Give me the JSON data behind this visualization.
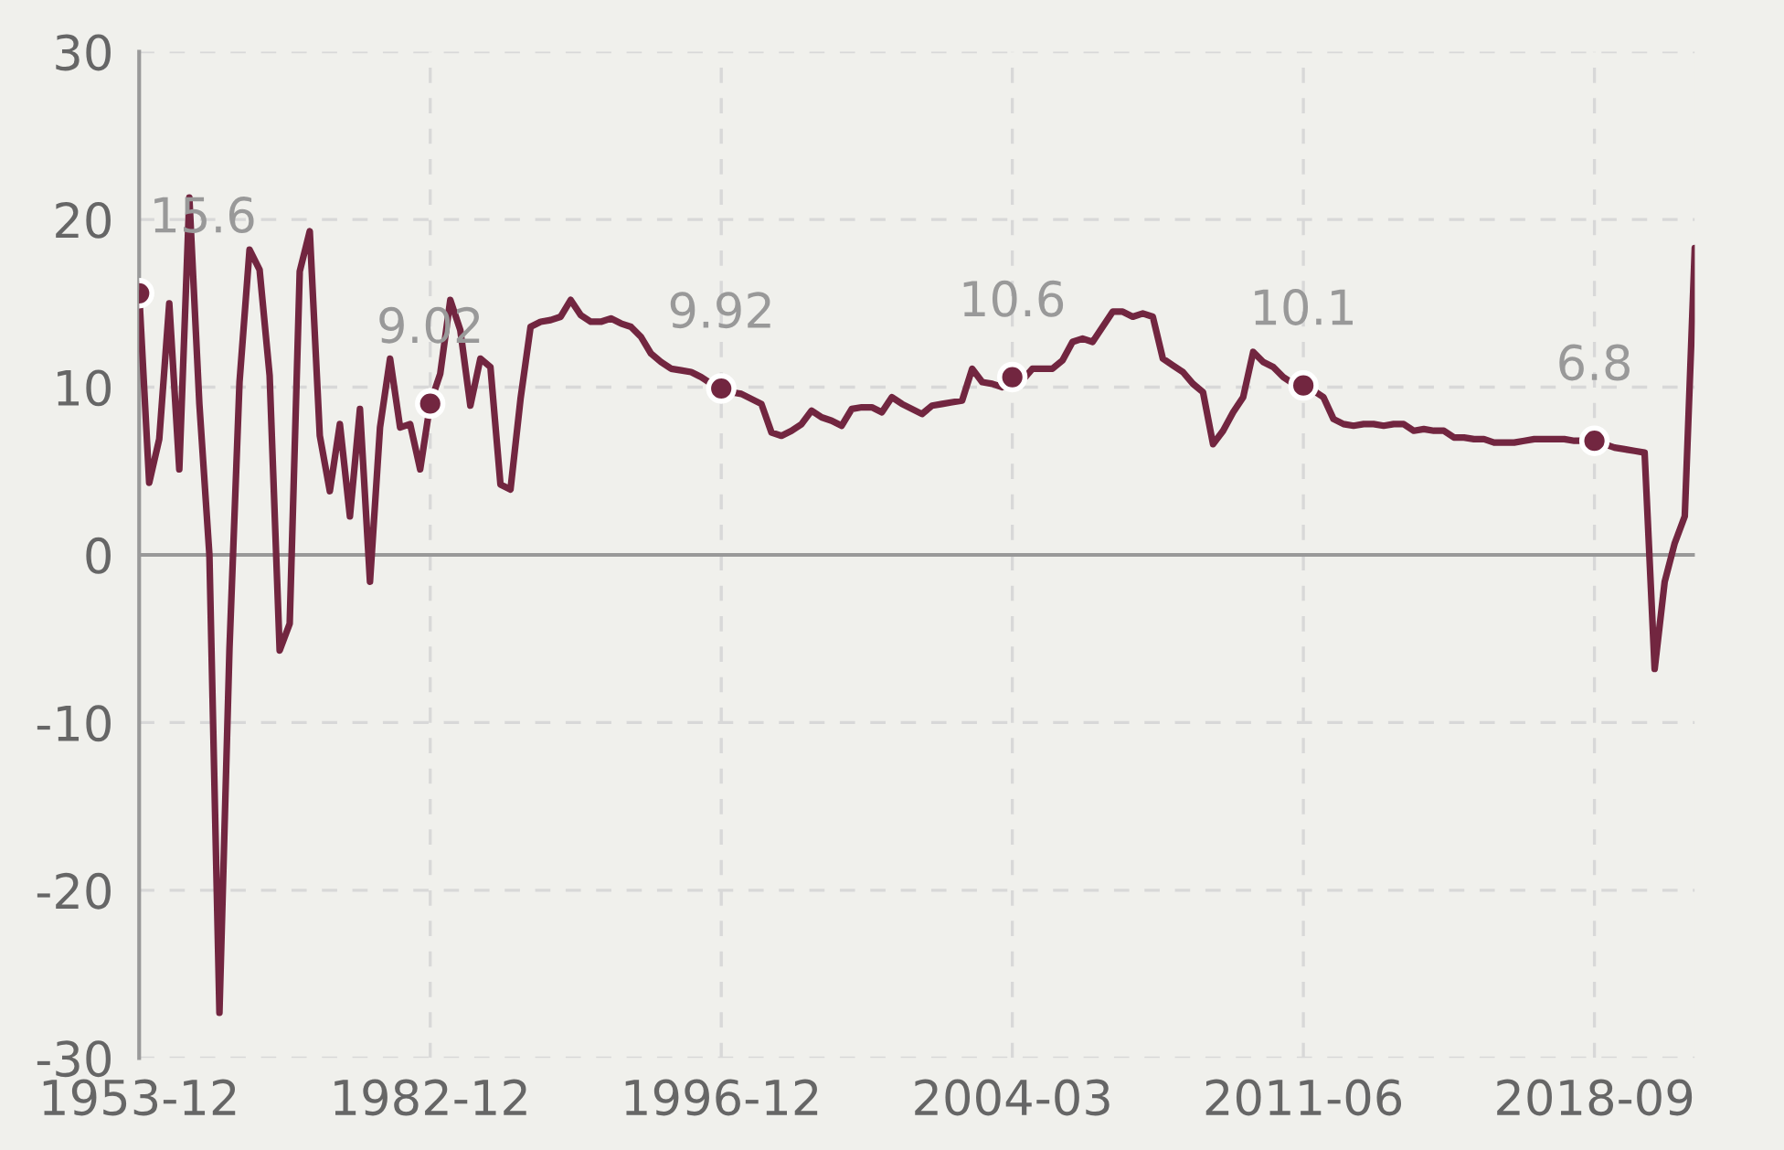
{
  "chart_data": {
    "type": "line",
    "categories": [
      "1953-12",
      null,
      null,
      null,
      null,
      null,
      null,
      null,
      null,
      null,
      null,
      null,
      null,
      null,
      null,
      null,
      null,
      null,
      null,
      null,
      null,
      null,
      null,
      null,
      null,
      null,
      null,
      null,
      null,
      "1982-12",
      null,
      null,
      null,
      null,
      null,
      null,
      null,
      null,
      null,
      null,
      null,
      null,
      null,
      null,
      null,
      null,
      null,
      null,
      null,
      null,
      null,
      null,
      null,
      null,
      null,
      null,
      null,
      null,
      "1996-12",
      null,
      null,
      null,
      null,
      null,
      null,
      null,
      null,
      null,
      null,
      null,
      null,
      null,
      null,
      null,
      null,
      null,
      null,
      null,
      null,
      null,
      null,
      null,
      null,
      null,
      null,
      null,
      null,
      "2004-03",
      null,
      null,
      null,
      null,
      null,
      null,
      null,
      null,
      null,
      null,
      null,
      null,
      null,
      null,
      null,
      null,
      null,
      null,
      null,
      null,
      null,
      null,
      null,
      null,
      null,
      null,
      null,
      null,
      "2011-06",
      null,
      null,
      null,
      null,
      null,
      null,
      null,
      null,
      null,
      null,
      null,
      null,
      null,
      null,
      null,
      null,
      null,
      null,
      null,
      null,
      null,
      null,
      null,
      null,
      null,
      null,
      null,
      null,
      "2018-09",
      null,
      null,
      null,
      null,
      null,
      null,
      null,
      null,
      null,
      null
    ],
    "series": [
      {
        "color": "#722640",
        "values": [
          15.6,
          4.3,
          6.9,
          15.0,
          5.1,
          21.3,
          9.0,
          0.0,
          -27.3,
          -5.6,
          10.3,
          18.2,
          17.0,
          10.7,
          -5.7,
          -4.1,
          16.9,
          19.3,
          7.1,
          3.8,
          7.8,
          2.3,
          8.7,
          -1.6,
          7.6,
          11.7,
          7.6,
          7.8,
          5.1,
          9.02,
          10.8,
          15.2,
          13.4,
          8.9,
          11.7,
          11.2,
          4.2,
          3.9,
          9.3,
          13.6,
          13.9,
          14.0,
          14.2,
          15.2,
          14.3,
          13.9,
          13.9,
          14.1,
          13.8,
          13.6,
          13.0,
          12.0,
          11.5,
          11.1,
          11.0,
          10.9,
          10.6,
          10.2,
          9.92,
          9.7,
          9.6,
          9.3,
          9.0,
          7.3,
          7.1,
          7.4,
          7.8,
          8.6,
          8.2,
          8.0,
          7.7,
          8.7,
          8.8,
          8.8,
          8.5,
          9.4,
          9.0,
          8.7,
          8.4,
          8.9,
          9.0,
          9.1,
          9.2,
          11.1,
          10.3,
          10.2,
          10.0,
          10.6,
          10.4,
          11.1,
          11.1,
          11.1,
          11.6,
          12.7,
          12.9,
          12.7,
          13.6,
          14.5,
          14.5,
          14.2,
          14.4,
          14.2,
          11.7,
          11.3,
          10.9,
          10.2,
          9.7,
          6.6,
          7.4,
          8.5,
          9.4,
          12.1,
          11.5,
          11.2,
          10.6,
          10.2,
          10.1,
          9.8,
          9.4,
          8.1,
          7.8,
          7.7,
          7.8,
          7.8,
          7.7,
          7.8,
          7.8,
          7.4,
          7.5,
          7.4,
          7.4,
          7.0,
          7.0,
          6.9,
          6.9,
          6.7,
          6.7,
          6.7,
          6.8,
          6.9,
          6.9,
          6.9,
          6.9,
          6.8,
          6.8,
          6.8,
          6.6,
          6.4,
          6.3,
          6.2,
          6.1,
          -6.8,
          -1.6,
          0.7,
          2.3,
          18.3
        ],
        "value_labels": [
          "15.6",
          null,
          null,
          null,
          null,
          null,
          null,
          null,
          null,
          null,
          null,
          null,
          null,
          null,
          null,
          null,
          null,
          null,
          null,
          null,
          null,
          null,
          null,
          null,
          null,
          null,
          null,
          null,
          null,
          "9.02",
          null,
          null,
          null,
          null,
          null,
          null,
          null,
          null,
          null,
          null,
          null,
          null,
          null,
          null,
          null,
          null,
          null,
          null,
          null,
          null,
          null,
          null,
          null,
          null,
          null,
          null,
          null,
          null,
          "9.92",
          null,
          null,
          null,
          null,
          null,
          null,
          null,
          null,
          null,
          null,
          null,
          null,
          null,
          null,
          null,
          null,
          null,
          null,
          null,
          null,
          null,
          null,
          null,
          null,
          null,
          null,
          null,
          null,
          "10.6",
          null,
          null,
          null,
          null,
          null,
          null,
          null,
          null,
          null,
          null,
          null,
          null,
          null,
          null,
          null,
          null,
          null,
          null,
          null,
          null,
          null,
          null,
          null,
          null,
          null,
          null,
          null,
          null,
          "10.1",
          null,
          null,
          null,
          null,
          null,
          null,
          null,
          null,
          null,
          null,
          null,
          null,
          null,
          null,
          null,
          null,
          null,
          null,
          null,
          null,
          null,
          null,
          null,
          null,
          null,
          null,
          null,
          null,
          "6.8",
          null,
          null,
          null,
          null,
          null,
          null,
          null,
          null,
          null,
          null
        ]
      }
    ],
    "ylim": [
      -30,
      30
    ],
    "yticks": [
      -30,
      -20,
      -10,
      0,
      10,
      20,
      30
    ],
    "ref_lines": [
      {
        "axis": "y",
        "value": 0,
        "color": "#999999",
        "line_style": "solid"
      }
    ],
    "grid": true,
    "line_style": "solid",
    "legend": false
  }
}
